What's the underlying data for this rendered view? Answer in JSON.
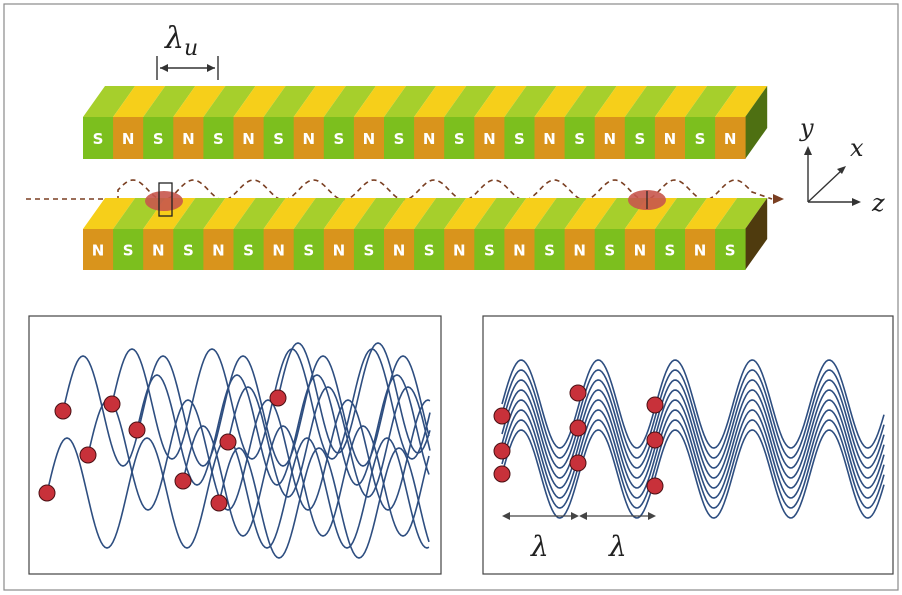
{
  "undulator": {
    "period_symbol": "λ",
    "period_subscript": "u",
    "top_labels": [
      "S",
      "N",
      "S",
      "N",
      "S",
      "N",
      "S",
      "N",
      "S",
      "N",
      "S",
      "N",
      "S",
      "N",
      "S",
      "N",
      "S",
      "N",
      "S",
      "N",
      "S",
      "N"
    ],
    "bottom_labels": [
      "N",
      "S",
      "N",
      "S",
      "N",
      "S",
      "N",
      "S",
      "N",
      "S",
      "N",
      "S",
      "N",
      "S",
      "N",
      "S",
      "N",
      "S",
      "N",
      "S",
      "N",
      "S"
    ],
    "colors": {
      "green_front": "#7cbf1e",
      "orange_front": "#d9941c",
      "green_top": "#a6cf2c",
      "yellow_top": "#f6cf1a",
      "top_end": "#4e7012",
      "bottom_end": "#4f3b0e",
      "electron": "#c8574c",
      "trajectory": "#7a3f22"
    }
  },
  "axes": {
    "x": "x",
    "y": "y",
    "z": "z"
  },
  "panels": {
    "left": {
      "wave_count": 8,
      "electron_color": "#c8313a",
      "wave_color": "#2e4e80"
    },
    "right": {
      "wavelength_label_1": "λ",
      "wavelength_label_2": "λ",
      "wave_count": 8
    }
  }
}
